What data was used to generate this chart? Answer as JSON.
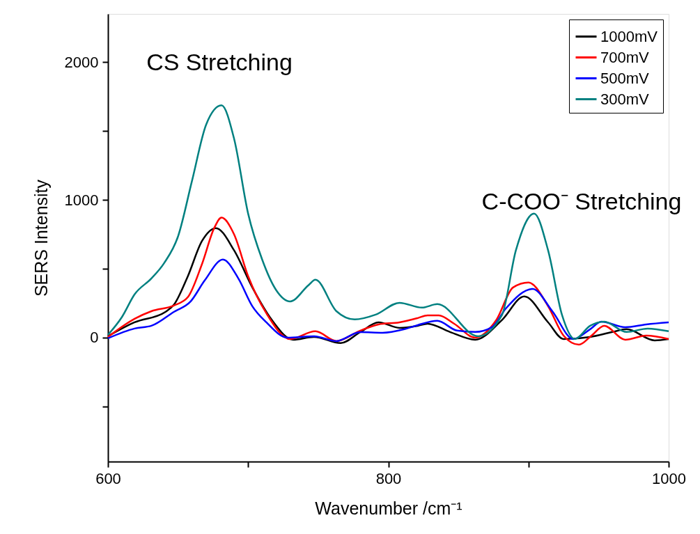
{
  "chart_data": {
    "type": "line",
    "xlabel": "Wavenumber /cm⁻¹",
    "ylabel": "SERS Intensity",
    "xlim": [
      600,
      1000
    ],
    "xticks": [
      600,
      {
        "value": 700,
        "label": null
      },
      800,
      {
        "value": 900,
        "label": null
      },
      1000
    ],
    "ylim": [
      -900,
      2350
    ],
    "yticks": [
      {
        "value": -500,
        "label": null
      },
      0,
      {
        "value": 500,
        "label": null
      },
      1000,
      {
        "value": 1500,
        "label": null
      },
      2000
    ],
    "grid": false,
    "legend": "top right",
    "line_style": "solid",
    "marker": "none",
    "annotations": [
      "CS Stretching",
      "C-COO⁻ Stretching"
    ],
    "series": [
      {
        "name": "1000mV",
        "color": "#000000",
        "x": [
          600,
          619,
          641,
          647,
          657,
          667,
          677,
          690,
          703,
          717,
          732,
          747,
          766,
          780,
          793,
          808,
          821,
          828,
          844,
          862,
          881,
          897,
          914,
          925,
          944,
          960,
          970,
          990,
          1000
        ],
        "values": [
          10,
          111,
          187,
          238,
          446,
          700,
          795,
          633,
          364,
          127,
          -15,
          5,
          -40,
          40,
          111,
          71,
          86,
          101,
          41,
          -15,
          127,
          299,
          111,
          -10,
          5,
          41,
          61,
          -20,
          -10
        ]
      },
      {
        "name": "700mV",
        "color": "#ff0000",
        "x": [
          600,
          619,
          631,
          647,
          657,
          667,
          676,
          681,
          690,
          700,
          713,
          730,
          748,
          763,
          780,
          793,
          808,
          821,
          828,
          836,
          847,
          862,
          877,
          889,
          900,
          914,
          925,
          936,
          945,
          954,
          969,
          984,
          1000
        ],
        "values": [
          5,
          137,
          192,
          233,
          294,
          532,
          800,
          871,
          749,
          446,
          177,
          -10,
          46,
          -25,
          51,
          96,
          111,
          142,
          162,
          162,
          101,
          0,
          127,
          364,
          400,
          228,
          15,
          -51,
          15,
          86,
          -15,
          15,
          -10
        ]
      },
      {
        "name": "500mV",
        "color": "#0000ff",
        "x": [
          600,
          619,
          631,
          647,
          659,
          669,
          682,
          693,
          703,
          713,
          728,
          747,
          763,
          780,
          796,
          811,
          821,
          835,
          849,
          862,
          874,
          884,
          903,
          917,
          932,
          944,
          952,
          969,
          984,
          1000
        ],
        "values": [
          -5,
          66,
          86,
          187,
          263,
          415,
          567,
          430,
          228,
          111,
          0,
          10,
          -25,
          40,
          35,
          60,
          91,
          122,
          51,
          41,
          76,
          213,
          354,
          192,
          -10,
          61,
          116,
          76,
          96,
          111
        ]
      },
      {
        "name": "300mV",
        "color": "#008080",
        "x": [
          600,
          610,
          619,
          631,
          640,
          650,
          660,
          670,
          681,
          690,
          700,
          710,
          720,
          730,
          743,
          748,
          763,
          776,
          791,
          808,
          824,
          835,
          864,
          881,
          891,
          904,
          914,
          924,
          933,
          944,
          954,
          970,
          985,
          1000
        ],
        "values": [
          20,
          150,
          314,
          430,
          540,
          735,
          1140,
          1545,
          1686,
          1443,
          900,
          567,
          345,
          263,
          380,
          420,
          192,
          132,
          167,
          253,
          218,
          243,
          10,
          162,
          633,
          901,
          633,
          162,
          -10,
          86,
          116,
          41,
          66,
          46
        ]
      }
    ]
  }
}
